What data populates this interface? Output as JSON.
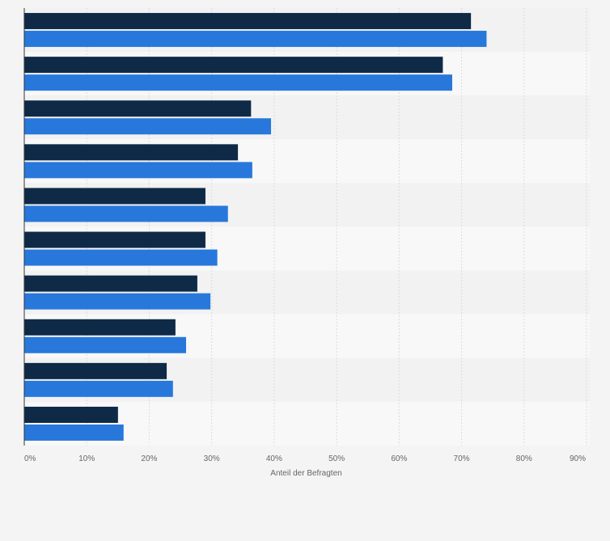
{
  "chart_data": {
    "type": "bar",
    "orientation": "horizontal",
    "title": "",
    "xlabel": "Anteil der Befragten",
    "ylabel": "",
    "xlim": [
      0,
      90
    ],
    "x_ticks": [
      "0%",
      "10%",
      "20%",
      "30%",
      "40%",
      "50%",
      "60%",
      "70%",
      "80%",
      "90%"
    ],
    "grid": true,
    "categories": [
      "",
      "",
      "",
      "",
      "",
      "",
      "",
      "",
      "",
      ""
    ],
    "series": [
      {
        "color": "#0f2a47",
        "values": [
          71.5,
          67,
          36.3,
          34.2,
          29,
          29,
          27.7,
          24.2,
          22.8,
          15
        ]
      },
      {
        "color": "#2878dc",
        "values": [
          74,
          68.5,
          39.5,
          36.5,
          32.6,
          30.9,
          29.8,
          25.9,
          23.8,
          15.9
        ]
      }
    ],
    "band_colors": [
      "#f2f2f2",
      "#f8f8f8"
    ]
  }
}
